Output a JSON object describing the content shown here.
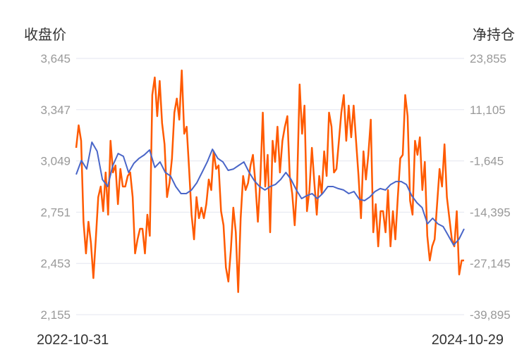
{
  "chart_data": {
    "type": "line",
    "left_axis_title": "收盘价",
    "right_axis_title": "净持仓",
    "left_ticks": [
      "3,645",
      "3,347",
      "3,049",
      "2,751",
      "2,453",
      "2,155"
    ],
    "right_ticks": [
      "23,855",
      "11,105",
      "-1,645",
      "-14,395",
      "-27,145",
      "-39,895"
    ],
    "left_ylim": [
      2155,
      3645
    ],
    "right_ylim": [
      -39895,
      23855
    ],
    "x_labels": [
      "2022-10-31",
      "2024-10-29"
    ],
    "grid": true,
    "colors": {
      "close": "#4a66c8",
      "net_position": "#ff5a00",
      "grid": "#e3e6ef"
    },
    "series": [
      {
        "axis": "left",
        "values": [
          2970,
          3052,
          3002,
          3158,
          3105,
          2941,
          2900,
          3023,
          3092,
          3076,
          2982,
          3035,
          3064,
          3084,
          3113,
          3011,
          3043,
          2982,
          2961,
          2900,
          2859,
          2859,
          2880,
          2921,
          2982,
          3043,
          3117,
          3064,
          3043,
          2994,
          3002,
          3023,
          3043,
          2982,
          2933,
          2900,
          2880,
          2900,
          2912,
          2941,
          2982,
          2941,
          2880,
          2830,
          2847,
          2859,
          2830,
          2859,
          2900,
          2900,
          2888,
          2880,
          2859,
          2871,
          2826,
          2818,
          2839,
          2871,
          2888,
          2880,
          2912,
          2929,
          2929,
          2912,
          2847,
          2806,
          2777,
          2683,
          2716,
          2683,
          2667,
          2614,
          2560,
          2593,
          2654
        ]
      },
      {
        "axis": "right",
        "values": [
          1612,
          7217,
          3364,
          -16777,
          -24659,
          -16777,
          -22032,
          -30789,
          -21156,
          -10648,
          -8020,
          -14150,
          -4518,
          -15026,
          3364,
          -4518,
          -2766,
          -12399,
          -3642,
          -8020,
          -8020,
          -5393,
          -4518,
          -10648,
          -24659,
          -21156,
          -18529,
          -18529,
          -24659,
          -15026,
          -20280,
          14748,
          19126,
          9494,
          18251,
          7742,
          2488,
          -10648,
          -7145,
          -1015,
          10369,
          13872,
          8618,
          20878,
          5115,
          6866,
          -3642,
          -15026,
          -21156,
          -10648,
          -15902,
          -13275,
          -15902,
          -12399,
          -6269,
          -8896,
          737,
          -3642,
          -2766,
          -14150,
          -17653,
          -28162,
          -31664,
          -23783,
          -13275,
          -19405,
          -34291,
          -15902,
          -5393,
          -8896,
          -7145,
          -2766,
          -139,
          -7145,
          -16777,
          -6269,
          10369,
          -8020,
          -139,
          -19405,
          3364,
          -1891,
          6866,
          -4518,
          3364,
          6866,
          9494,
          -5393,
          -9772,
          -17653,
          -7145,
          17375,
          5115,
          12121,
          -14150,
          -8896,
          1612,
          -7145,
          -15026,
          -5393,
          -9772,
          737,
          -5393,
          10369,
          6866,
          -4518,
          -3642,
          3364,
          10369,
          14748,
          3364,
          12121,
          4239,
          12121,
          3364,
          -5393,
          -15902,
          737,
          -6269,
          -139,
          8618,
          -19405,
          -12399,
          -22907,
          -14150,
          -14150,
          -19405,
          -8896,
          -22907,
          -14150,
          -21156,
          -10648,
          -1015,
          -139,
          14748,
          9494,
          -11523,
          -15026,
          3364,
          -139,
          4239,
          -8896,
          -1891,
          -20280,
          -26410,
          -22907,
          -21156,
          -12399,
          -3642,
          -8020,
          2488,
          -10648,
          -15902,
          -21156,
          -22907,
          -14150,
          -29913,
          -26410,
          -26410
        ]
      }
    ]
  }
}
